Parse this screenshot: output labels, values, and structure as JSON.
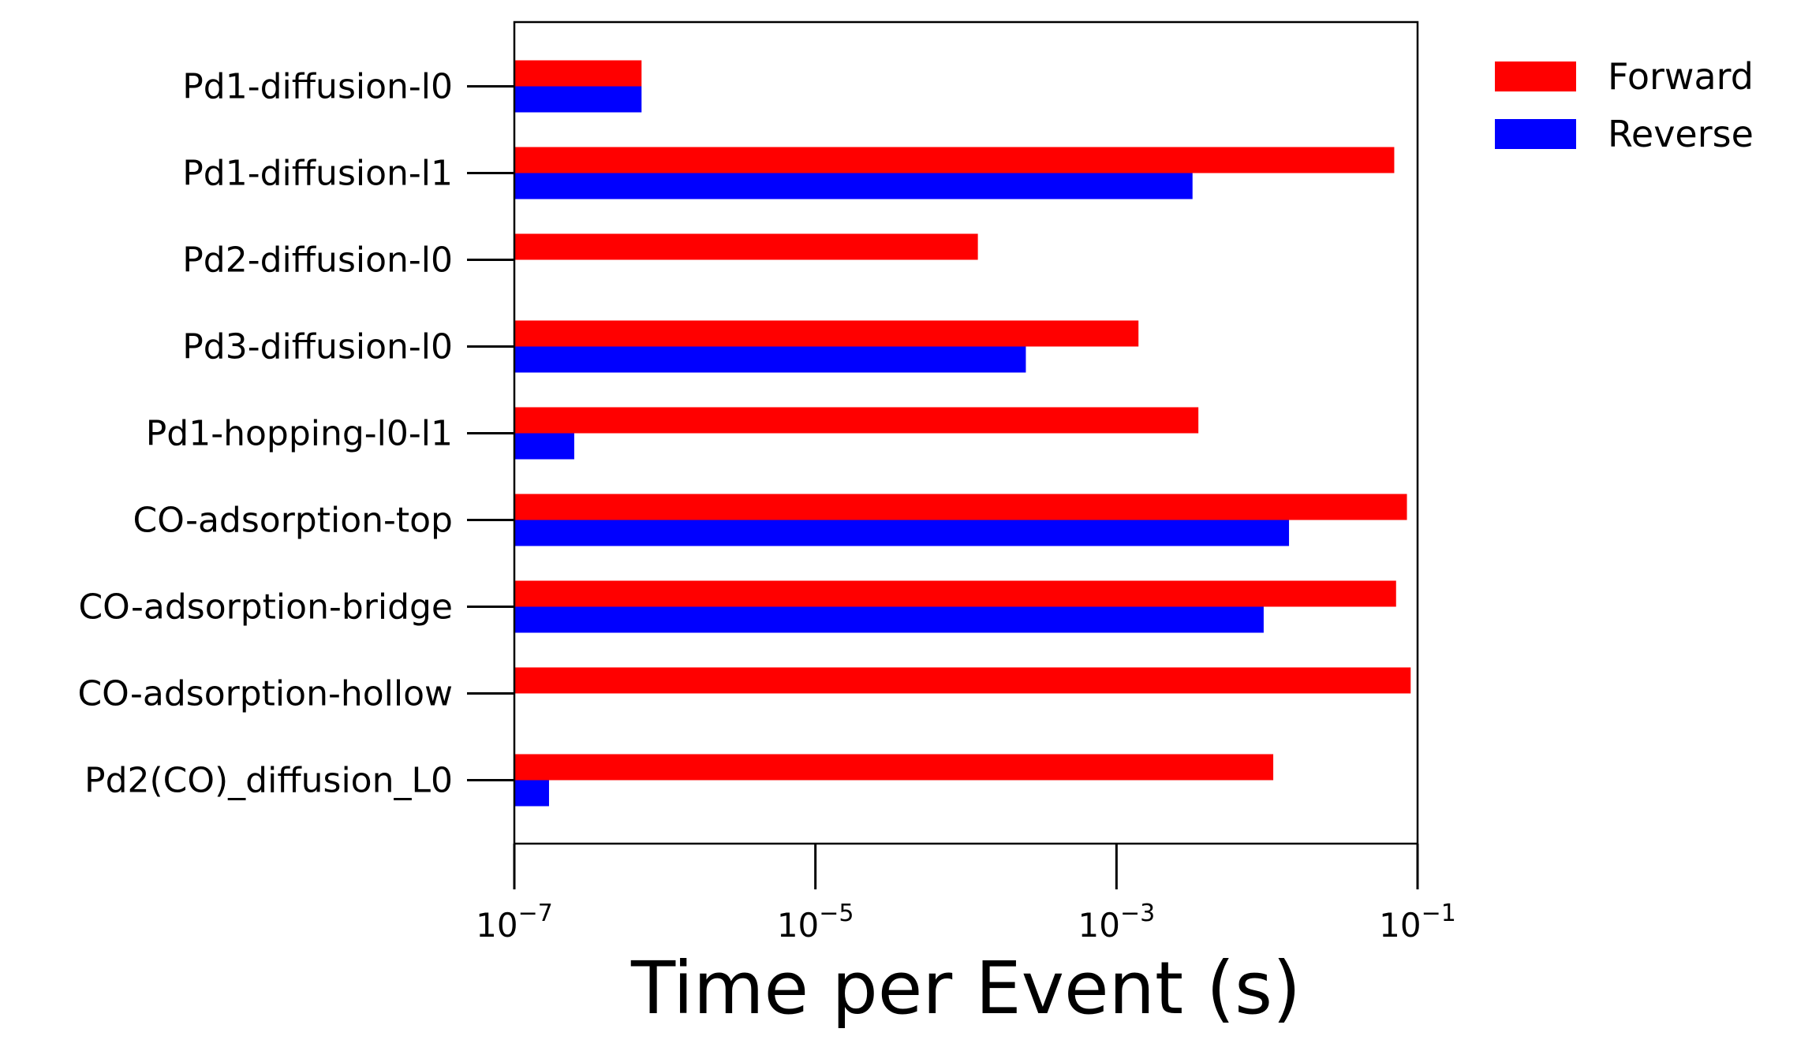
{
  "chart_data": {
    "type": "bar",
    "orientation": "horizontal",
    "xscale": "log",
    "xlabel": "Time per Event (s)",
    "ylabel": "",
    "title": "",
    "xlim": [
      1e-07,
      0.1
    ],
    "x_ticks": [
      {
        "value": 1e-07,
        "base": "10",
        "exponent": "−7"
      },
      {
        "value": 1e-05,
        "base": "10",
        "exponent": "−5"
      },
      {
        "value": 0.001,
        "base": "10",
        "exponent": "−3"
      },
      {
        "value": 0.1,
        "base": "10",
        "exponent": "−1"
      }
    ],
    "categories": [
      "Pd1-diffusion-l0",
      "Pd1-diffusion-l1",
      "Pd2-diffusion-l0",
      "Pd3-diffusion-l0",
      "Pd1-hopping-l0-l1",
      "CO-adsorption-top",
      "CO-adsorption-bridge",
      "CO-adsorption-hollow",
      "Pd2(CO)_diffusion_L0"
    ],
    "series": [
      {
        "name": "Forward",
        "color": "#ff0000",
        "values": [
          7e-07,
          0.07,
          0.00012,
          0.0014,
          0.0035,
          0.085,
          0.072,
          0.09,
          0.011
        ]
      },
      {
        "name": "Reverse",
        "color": "#0000ff",
        "values": [
          7e-07,
          0.0032,
          null,
          0.00025,
          2.5e-07,
          0.014,
          0.0095,
          null,
          1.7e-07
        ]
      }
    ],
    "legend_position": "outside-top-right",
    "grid": false
  }
}
